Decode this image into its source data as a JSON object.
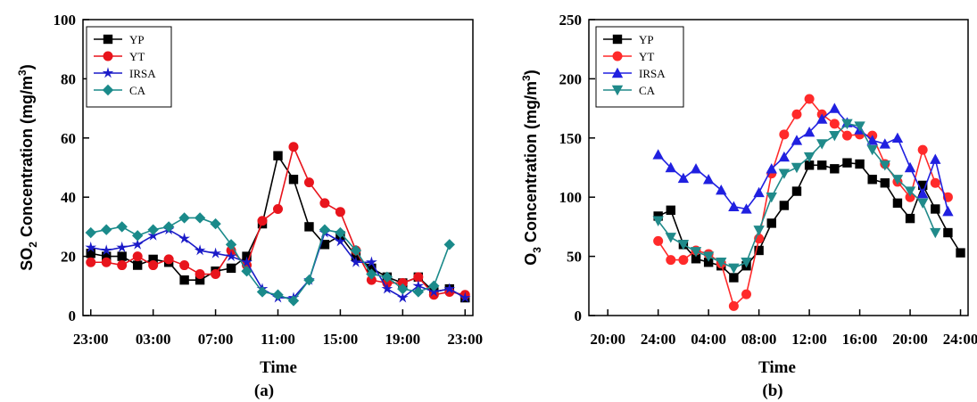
{
  "chart_data": [
    {
      "type": "line",
      "panel_label": "(a)",
      "xlabel": "Time",
      "ylabel": {
        "before": "SO",
        "sub": "2",
        "mid": " Concentration (mg/m",
        "sup": "3",
        "after": ")"
      },
      "ylim": [
        0,
        100
      ],
      "yticks": [
        "0",
        "20",
        "40",
        "60",
        "80",
        "100"
      ],
      "xticks": [
        "23:00",
        "03:00",
        "07:00",
        "11:00",
        "15:00",
        "19:00",
        "23:00"
      ],
      "x": [
        0,
        1,
        2,
        3,
        4,
        5,
        6,
        7,
        8,
        9,
        10,
        11,
        12,
        13,
        14,
        15,
        16,
        17,
        18,
        19,
        20,
        21,
        22,
        23,
        24
      ],
      "legend_position": "top-left",
      "series": [
        {
          "name": "YP",
          "color": "#000000",
          "marker": "square",
          "values": [
            21,
            20,
            20,
            17,
            19,
            18,
            12,
            12,
            15,
            16,
            20,
            31,
            54,
            46,
            30,
            24,
            27,
            20,
            16,
            13,
            11,
            13,
            8,
            9,
            6
          ]
        },
        {
          "name": "YT",
          "color": "#e8141c",
          "marker": "circle",
          "values": [
            18,
            18,
            17,
            20,
            17,
            19,
            17,
            14,
            14,
            22,
            17,
            32,
            36,
            57,
            45,
            38,
            35,
            22,
            12,
            11,
            11,
            13,
            7,
            8,
            7
          ]
        },
        {
          "name": "IRSA",
          "color": "#1a1ac8",
          "marker": "star",
          "values": [
            23,
            22,
            23,
            24,
            27,
            29,
            26,
            22,
            21,
            20,
            18,
            9,
            6,
            6,
            12,
            28,
            25,
            18,
            18,
            9,
            6,
            10,
            8,
            9,
            6
          ]
        },
        {
          "name": "CA",
          "color": "#1a8a8a",
          "marker": "diamond",
          "values": [
            28,
            29,
            30,
            27,
            29,
            30,
            33,
            33,
            31,
            24,
            15,
            8,
            7,
            5,
            12,
            29,
            28,
            22,
            14,
            13,
            9,
            8,
            10,
            24,
            null
          ]
        }
      ]
    },
    {
      "type": "line",
      "panel_label": "(b)",
      "xlabel": "Time",
      "ylabel": {
        "before": "O",
        "sub": "3",
        "mid": " Concentration (mg/m",
        "sup": "3",
        "after": ")"
      },
      "ylim": [
        0,
        250
      ],
      "yticks": [
        "0",
        "50",
        "100",
        "150",
        "200",
        "250"
      ],
      "xticks": [
        "20:00",
        "24:00",
        "04:00",
        "08:00",
        "12:00",
        "16:00",
        "20:00",
        "24:00"
      ],
      "x": [
        0,
        1,
        2,
        3,
        4,
        5,
        6,
        7,
        8,
        9,
        10,
        11,
        12,
        13,
        14,
        15,
        16,
        17,
        18,
        19,
        20,
        21,
        22,
        23,
        24
      ],
      "legend_position": "top-left",
      "series": [
        {
          "name": "YP",
          "color": "#000000",
          "marker": "square",
          "values": [
            84,
            89,
            60,
            48,
            45,
            42,
            32,
            42,
            55,
            78,
            93,
            105,
            127,
            127,
            124,
            129,
            128,
            115,
            112,
            95,
            82,
            110,
            90,
            70,
            53
          ]
        },
        {
          "name": "YT",
          "color": "#ff2a2a",
          "marker": "circle",
          "values": [
            63,
            47,
            47,
            55,
            52,
            44,
            8,
            18,
            65,
            120,
            153,
            170,
            183,
            170,
            162,
            152,
            153,
            152,
            128,
            113,
            100,
            140,
            112,
            100,
            null
          ]
        },
        {
          "name": "IRSA",
          "color": "#2020e0",
          "marker": "triangle-up",
          "values": [
            136,
            125,
            116,
            124,
            115,
            106,
            92,
            90,
            104,
            124,
            134,
            148,
            155,
            166,
            175,
            163,
            157,
            148,
            145,
            150,
            125,
            103,
            132,
            88,
            null
          ]
        },
        {
          "name": "CA",
          "color": "#208a8a",
          "marker": "triangle-down",
          "values": [
            80,
            66,
            60,
            54,
            50,
            45,
            40,
            45,
            72,
            100,
            120,
            125,
            134,
            145,
            152,
            162,
            160,
            140,
            127,
            115,
            105,
            95,
            70,
            null,
            null
          ]
        }
      ]
    }
  ]
}
